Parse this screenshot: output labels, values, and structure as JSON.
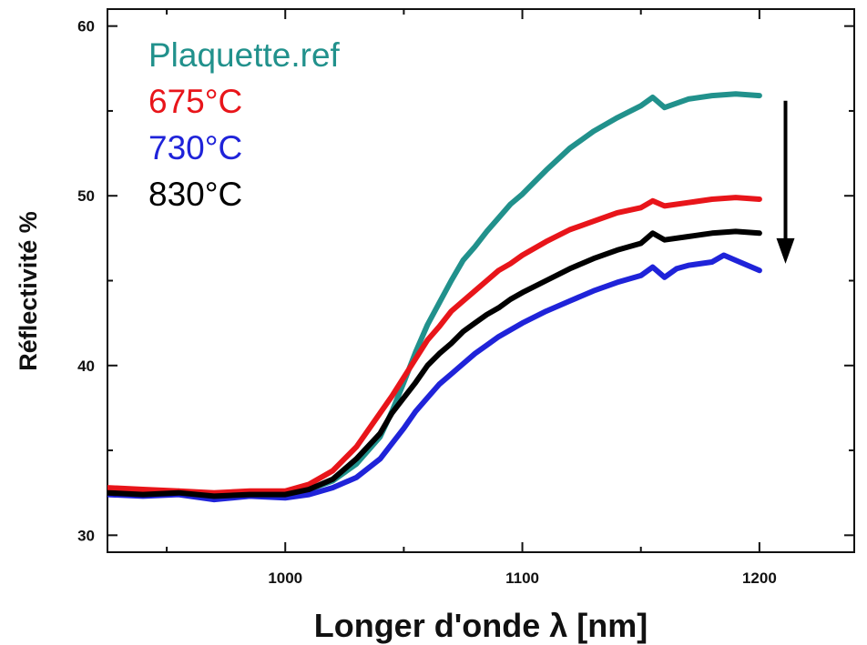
{
  "chart_data": {
    "type": "line",
    "title": "",
    "xlabel": "Longer d'onde λ [nm]",
    "ylabel": "Réflectivité %",
    "xlim": [
      925,
      1240
    ],
    "ylim": [
      29,
      61
    ],
    "x_ticks": [
      1000,
      1100,
      1200
    ],
    "y_ticks": [
      30,
      40,
      50,
      60
    ],
    "grid": false,
    "legend_position": "top-left",
    "series": [
      {
        "name": "Plaquette.ref",
        "color": "#21918c",
        "x": [
          925,
          940,
          955,
          970,
          985,
          1000,
          1010,
          1020,
          1030,
          1040,
          1045,
          1050,
          1055,
          1060,
          1065,
          1070,
          1075,
          1080,
          1085,
          1090,
          1095,
          1100,
          1105,
          1110,
          1120,
          1130,
          1140,
          1150,
          1155,
          1160,
          1170,
          1180,
          1190,
          1200
        ],
        "y": [
          32.5,
          32.4,
          32.6,
          32.2,
          32.3,
          32.4,
          32.7,
          33.2,
          34.2,
          35.8,
          37.3,
          39.0,
          40.8,
          42.4,
          43.7,
          45.0,
          46.2,
          47.0,
          47.9,
          48.7,
          49.5,
          50.1,
          50.8,
          51.5,
          52.8,
          53.8,
          54.6,
          55.3,
          55.8,
          55.2,
          55.7,
          55.9,
          56.0,
          55.9
        ]
      },
      {
        "name": "675°C",
        "color": "#e8151a",
        "x": [
          925,
          940,
          955,
          970,
          985,
          1000,
          1010,
          1020,
          1030,
          1040,
          1045,
          1050,
          1055,
          1060,
          1065,
          1070,
          1075,
          1080,
          1085,
          1090,
          1095,
          1100,
          1110,
          1120,
          1130,
          1140,
          1150,
          1155,
          1160,
          1170,
          1180,
          1190,
          1200
        ],
        "y": [
          32.8,
          32.7,
          32.6,
          32.5,
          32.6,
          32.6,
          33.0,
          33.8,
          35.2,
          37.2,
          38.2,
          39.3,
          40.4,
          41.5,
          42.3,
          43.2,
          43.8,
          44.4,
          45.0,
          45.6,
          46.0,
          46.5,
          47.3,
          48.0,
          48.5,
          49.0,
          49.3,
          49.7,
          49.4,
          49.6,
          49.8,
          49.9,
          49.8
        ]
      },
      {
        "name": "730°C",
        "color": "#1f23d9",
        "x": [
          925,
          940,
          955,
          970,
          985,
          1000,
          1010,
          1020,
          1030,
          1040,
          1045,
          1050,
          1055,
          1060,
          1065,
          1070,
          1075,
          1080,
          1085,
          1090,
          1100,
          1110,
          1120,
          1130,
          1140,
          1150,
          1155,
          1160,
          1165,
          1170,
          1180,
          1185,
          1190,
          1200
        ],
        "y": [
          32.4,
          32.3,
          32.4,
          32.1,
          32.3,
          32.2,
          32.4,
          32.8,
          33.4,
          34.5,
          35.4,
          36.3,
          37.3,
          38.1,
          38.9,
          39.5,
          40.1,
          40.7,
          41.2,
          41.7,
          42.5,
          43.2,
          43.8,
          44.4,
          44.9,
          45.3,
          45.8,
          45.2,
          45.7,
          45.9,
          46.1,
          46.5,
          46.2,
          45.6
        ]
      },
      {
        "name": "830°C",
        "color": "#000000",
        "x": [
          925,
          940,
          955,
          970,
          985,
          1000,
          1010,
          1020,
          1030,
          1040,
          1045,
          1050,
          1055,
          1060,
          1065,
          1070,
          1075,
          1080,
          1085,
          1090,
          1095,
          1100,
          1110,
          1120,
          1130,
          1140,
          1150,
          1155,
          1160,
          1170,
          1180,
          1190,
          1200
        ],
        "y": [
          32.5,
          32.4,
          32.5,
          32.3,
          32.4,
          32.4,
          32.7,
          33.3,
          34.5,
          36.0,
          37.2,
          38.1,
          39.0,
          40.0,
          40.7,
          41.3,
          42.0,
          42.5,
          43.0,
          43.4,
          43.9,
          44.3,
          45.0,
          45.7,
          46.3,
          46.8,
          47.2,
          47.8,
          47.4,
          47.6,
          47.8,
          47.9,
          47.8
        ]
      }
    ],
    "annotations": [
      {
        "type": "arrow",
        "direction": "down",
        "color": "#000000",
        "x": 1211,
        "y_from": 55.6,
        "y_to": 46.0
      }
    ]
  }
}
